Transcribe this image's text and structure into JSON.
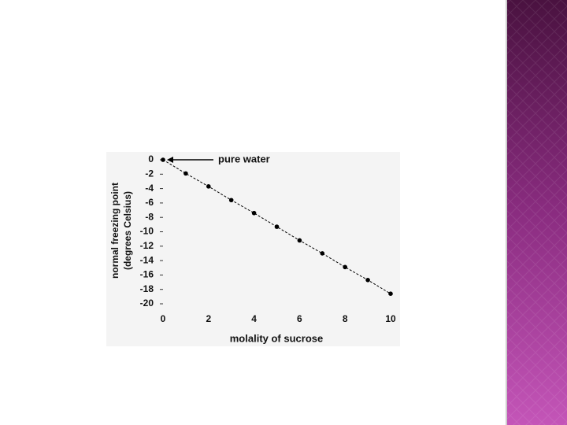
{
  "chart_data": {
    "type": "line",
    "ylabel": [
      "normal freezing point",
      "(degrees Celsius)"
    ],
    "xlabel": "molality of sucrose",
    "annotation": "pure water",
    "x": [
      0,
      1,
      2,
      3,
      4,
      5,
      6,
      7,
      8,
      9,
      10
    ],
    "values": [
      0,
      -1.9,
      -3.7,
      -5.6,
      -7.4,
      -9.3,
      -11.2,
      -13,
      -14.9,
      -16.7,
      -18.6
    ],
    "color": "#000000",
    "xlim": [
      0,
      10
    ],
    "xticks": [
      0,
      2,
      4,
      6,
      8,
      10
    ],
    "ylim": [
      -20,
      0
    ],
    "yticks": [
      0,
      -2,
      -4,
      -6,
      -8,
      -10,
      -12,
      -14,
      -16,
      -18,
      -20
    ],
    "line_style": "dashed",
    "grid": false
  }
}
